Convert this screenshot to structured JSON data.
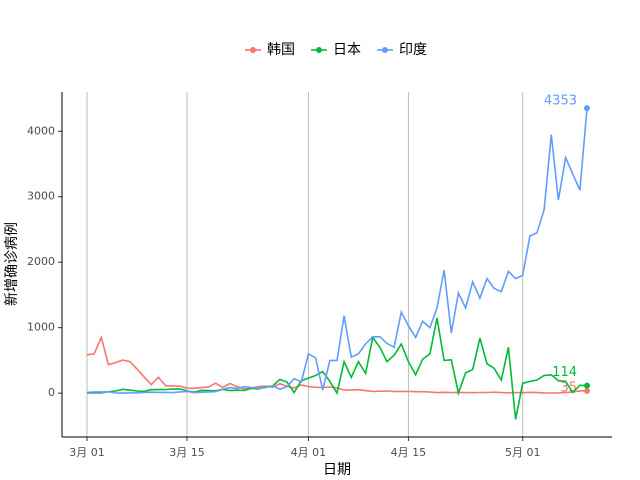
{
  "chart_data": {
    "type": "line",
    "xlabel": "日期",
    "ylabel": "新增确诊病例",
    "x": [
      "03-01",
      "03-02",
      "03-03",
      "03-04",
      "03-05",
      "03-06",
      "03-07",
      "03-08",
      "03-09",
      "03-10",
      "03-11",
      "03-12",
      "03-13",
      "03-14",
      "03-15",
      "03-16",
      "03-17",
      "03-18",
      "03-19",
      "03-20",
      "03-21",
      "03-22",
      "03-23",
      "03-24",
      "03-25",
      "03-26",
      "03-27",
      "03-28",
      "03-29",
      "03-30",
      "03-31",
      "04-01",
      "04-02",
      "04-03",
      "04-04",
      "04-05",
      "04-06",
      "04-07",
      "04-08",
      "04-09",
      "04-10",
      "04-11",
      "04-12",
      "04-13",
      "04-14",
      "04-15",
      "04-16",
      "04-17",
      "04-18",
      "04-19",
      "04-20",
      "04-21",
      "04-22",
      "04-23",
      "04-24",
      "04-25",
      "04-26",
      "04-27",
      "04-28",
      "04-29",
      "04-30",
      "05-01",
      "05-02",
      "05-03",
      "05-04",
      "05-05",
      "05-06",
      "05-07",
      "05-08",
      "05-09",
      "05-10"
    ],
    "xticks": [
      {
        "value": "03-01",
        "label": "3月 01"
      },
      {
        "value": "03-15",
        "label": "3月 15"
      },
      {
        "value": "04-01",
        "label": "4月 01"
      },
      {
        "value": "04-15",
        "label": "4月 15"
      },
      {
        "value": "05-01",
        "label": "5月 01"
      }
    ],
    "series": [
      {
        "name": "韩国",
        "color": "#F8766D",
        "values": [
          586,
          599,
          851,
          435,
          467,
          505,
          483,
          367,
          248,
          131,
          242,
          114,
          110,
          107,
          76,
          74,
          84,
          93,
          152,
          87,
          147,
          98,
          64,
          76,
          100,
          104,
          91,
          146,
          105,
          78,
          125,
          101,
          89,
          86,
          94,
          81,
          47,
          47,
          53,
          39,
          27,
          30,
          32,
          25,
          27,
          27,
          22,
          22,
          18,
          8,
          13,
          9,
          11,
          8,
          6,
          10,
          10,
          14,
          9,
          4,
          9,
          6,
          13,
          8,
          3,
          2,
          4,
          12,
          18,
          34,
          35
        ]
      },
      {
        "name": "日本",
        "color": "#00BA38",
        "values": [
          9,
          14,
          15,
          20,
          33,
          59,
          47,
          33,
          26,
          52,
          54,
          56,
          61,
          64,
          34,
          15,
          44,
          39,
          35,
          58,
          39,
          45,
          40,
          72,
          65,
          96,
          111,
          210,
          170,
          10,
          190,
          230,
          270,
          330,
          180,
          0,
          480,
          240,
          480,
          300,
          850,
          700,
          480,
          580,
          750,
          480,
          280,
          520,
          600,
          1150,
          500,
          510,
          0,
          310,
          360,
          840,
          450,
          380,
          200,
          700,
          -400,
          150,
          180,
          200,
          270,
          280,
          190,
          180,
          10,
          120,
          114
        ]
      },
      {
        "name": "印度",
        "color": "#619CFF",
        "values": [
          0,
          2,
          1,
          22,
          2,
          1,
          3,
          5,
          9,
          15,
          12,
          13,
          8,
          19,
          26,
          7,
          15,
          18,
          23,
          57,
          84,
          69,
          99,
          86,
          75,
          85,
          110,
          60,
          100,
          220,
          170,
          600,
          540,
          50,
          500,
          500,
          1180,
          550,
          600,
          750,
          860,
          860,
          760,
          700,
          1240,
          1030,
          850,
          1100,
          1000,
          1300,
          1880,
          920,
          1530,
          1300,
          1700,
          1450,
          1750,
          1600,
          1550,
          1860,
          1750,
          1800,
          2400,
          2450,
          2800,
          3950,
          2950,
          3600,
          3350,
          3100,
          4353
        ]
      }
    ],
    "ylim": [
      -670,
      4600
    ],
    "yticks": [
      0,
      1000,
      2000,
      3000,
      4000
    ],
    "grid": "x",
    "legend": "top"
  }
}
